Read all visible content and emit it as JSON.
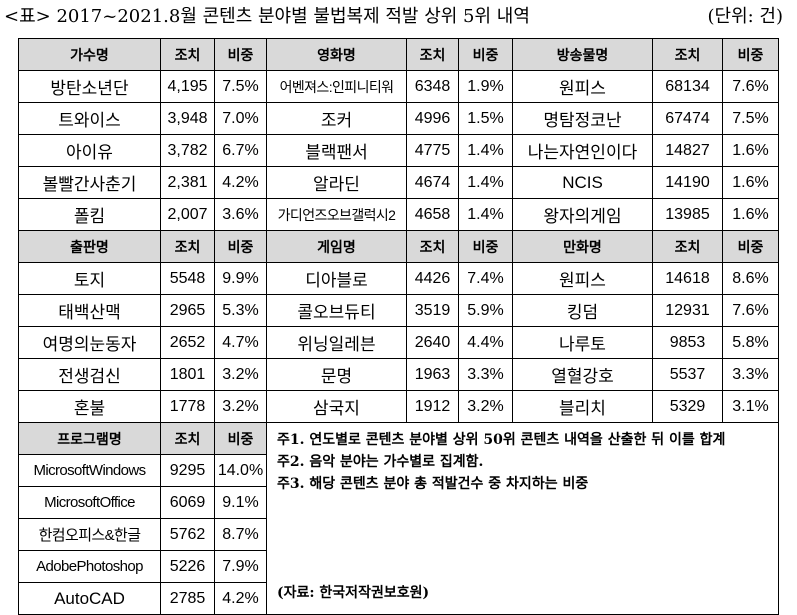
{
  "title": "<표> 2017~2021.8월 콘텐츠 분야별 불법복제 적발 상위 5위 내역",
  "unit": "(단위: 건)",
  "sections": [
    {
      "columns": [
        {
          "name": "가수명",
          "count": "조치",
          "share": "비중",
          "rows": [
            {
              "name": "방탄소년단",
              "count": "4,195",
              "share": "7.5%"
            },
            {
              "name": "트와이스",
              "count": "3,948",
              "share": "7.0%"
            },
            {
              "name": "아이유",
              "count": "3,782",
              "share": "6.7%"
            },
            {
              "name": "볼빨간사춘기",
              "count": "2,381",
              "share": "4.2%"
            },
            {
              "name": "폴킴",
              "count": "2,007",
              "share": "3.6%"
            }
          ]
        },
        {
          "name": "영화명",
          "count": "조치",
          "share": "비중",
          "rows": [
            {
              "name": "어벤져스:인피니티워",
              "count": "6348",
              "share": "1.9%"
            },
            {
              "name": "조커",
              "count": "4996",
              "share": "1.5%"
            },
            {
              "name": "블랙팬서",
              "count": "4775",
              "share": "1.4%"
            },
            {
              "name": "알라딘",
              "count": "4674",
              "share": "1.4%"
            },
            {
              "name": "가디언즈오브갤럭시2",
              "count": "4658",
              "share": "1.4%"
            }
          ]
        },
        {
          "name": "방송물명",
          "count": "조치",
          "share": "비중",
          "rows": [
            {
              "name": "원피스",
              "count": "68134",
              "share": "7.6%"
            },
            {
              "name": "명탐정코난",
              "count": "67474",
              "share": "7.5%"
            },
            {
              "name": "나는자연인이다",
              "count": "14827",
              "share": "1.6%"
            },
            {
              "name": "NCIS",
              "count": "14190",
              "share": "1.6%"
            },
            {
              "name": "왕자의게임",
              "count": "13985",
              "share": "1.6%"
            }
          ]
        }
      ]
    },
    {
      "columns": [
        {
          "name": "출판명",
          "count": "조치",
          "share": "비중",
          "rows": [
            {
              "name": "토지",
              "count": "5548",
              "share": "9.9%"
            },
            {
              "name": "태백산맥",
              "count": "2965",
              "share": "5.3%"
            },
            {
              "name": "여명의눈동자",
              "count": "2652",
              "share": "4.7%"
            },
            {
              "name": "전생검신",
              "count": "1801",
              "share": "3.2%"
            },
            {
              "name": "혼불",
              "count": "1778",
              "share": "3.2%"
            }
          ]
        },
        {
          "name": "게임명",
          "count": "조치",
          "share": "비중",
          "rows": [
            {
              "name": "디아블로",
              "count": "4426",
              "share": "7.4%"
            },
            {
              "name": "콜오브듀티",
              "count": "3519",
              "share": "5.9%"
            },
            {
              "name": "위닝일레븐",
              "count": "2640",
              "share": "4.4%"
            },
            {
              "name": "문명",
              "count": "1963",
              "share": "3.3%"
            },
            {
              "name": "삼국지",
              "count": "1912",
              "share": "3.2%"
            }
          ]
        },
        {
          "name": "만화명",
          "count": "조치",
          "share": "비중",
          "rows": [
            {
              "name": "원피스",
              "count": "14618",
              "share": "8.6%"
            },
            {
              "name": "킹덤",
              "count": "12931",
              "share": "7.6%"
            },
            {
              "name": "나루토",
              "count": "9853",
              "share": "5.8%"
            },
            {
              "name": "열혈강호",
              "count": "5537",
              "share": "3.3%"
            },
            {
              "name": "블리치",
              "count": "5329",
              "share": "3.1%"
            }
          ]
        }
      ]
    }
  ],
  "program": {
    "name": "프로그램명",
    "count": "조치",
    "share": "비중",
    "rows": [
      {
        "name": "MicrosoftWindows",
        "count": "9295",
        "share": "14.0%"
      },
      {
        "name": "MicrosoftOffice",
        "count": "6069",
        "share": "9.1%"
      },
      {
        "name": "한컴오피스&한글",
        "count": "5762",
        "share": "8.7%"
      },
      {
        "name": "AdobePhotoshop",
        "count": "5226",
        "share": "7.9%"
      },
      {
        "name": "AutoCAD",
        "count": "2785",
        "share": "4.2%"
      }
    ]
  },
  "notes": [
    "주1. 연도별로 콘텐츠 분야별 상위 50위 콘텐츠 내역을 산출한 뒤 이를 합계",
    "주2. 음악 분야는 가수별로 집계함.",
    "주3. 해당 콘텐츠 분야 총 적발건수 중 차지하는 비중"
  ],
  "source": "(자료: 한국저작권보호원)"
}
